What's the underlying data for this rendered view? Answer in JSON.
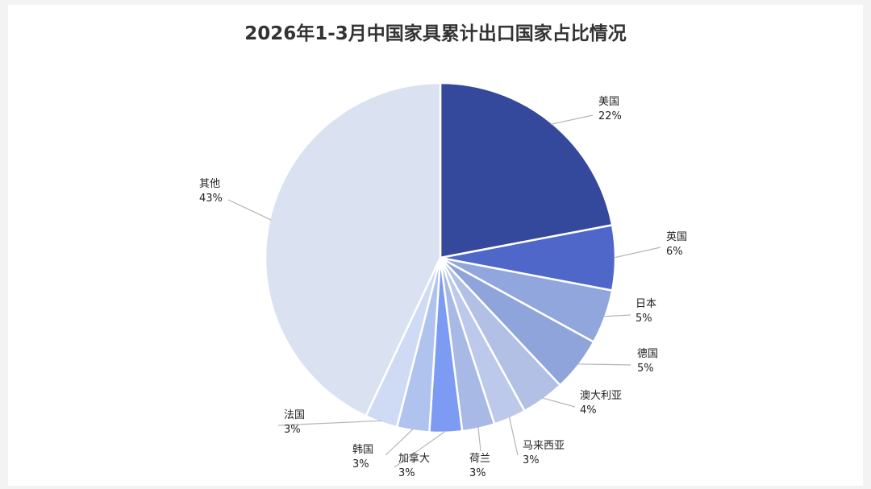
{
  "chart_data": {
    "type": "pie",
    "title": "2026年1-3月中国家具累计出口国家占比情况",
    "slices": [
      {
        "label": "美国",
        "value": 22,
        "value_label": "22%",
        "color": "#34489c"
      },
      {
        "label": "英国",
        "value": 6,
        "value_label": "6%",
        "color": "#4f67c8"
      },
      {
        "label": "日本",
        "value": 5,
        "value_label": "5%",
        "color": "#90a6dc"
      },
      {
        "label": "德国",
        "value": 5,
        "value_label": "5%",
        "color": "#8ea4da"
      },
      {
        "label": "澳大利亚",
        "value": 4,
        "value_label": "4%",
        "color": "#b2c0e6"
      },
      {
        "label": "马来西亚",
        "value": 3,
        "value_label": "3%",
        "color": "#bcc9ea"
      },
      {
        "label": "荷兰",
        "value": 3,
        "value_label": "3%",
        "color": "#a8b9e6"
      },
      {
        "label": "加拿大",
        "value": 3,
        "value_label": "3%",
        "color": "#7d9bf2"
      },
      {
        "label": "韩国",
        "value": 3,
        "value_label": "3%",
        "color": "#b0c2ee"
      },
      {
        "label": "法国",
        "value": 3,
        "value_label": "3%",
        "color": "#cfdaf4"
      },
      {
        "label": "其他",
        "value": 43,
        "value_label": "43%",
        "color": "#dae2f2"
      }
    ],
    "legend": "none"
  }
}
